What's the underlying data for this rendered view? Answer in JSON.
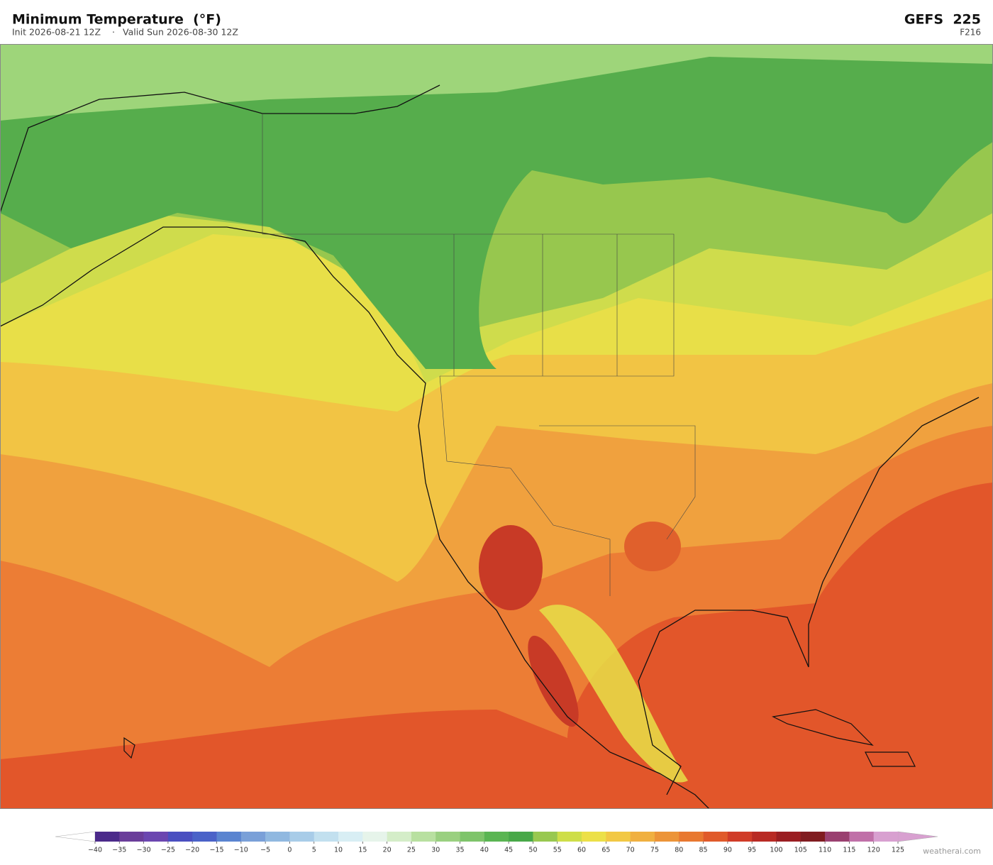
{
  "header": {
    "title": "Minimum Temperature  (°F)",
    "init": "Init 2026-08-21 12Z",
    "separator": "·",
    "valid": "Valid Sun 2026-08-30 12Z",
    "model": "GEFS  225",
    "forecast_hour": "F216"
  },
  "colorbar": {
    "ticks": [
      {
        "value": -40,
        "label": "−40"
      },
      {
        "value": -35,
        "label": "−35"
      },
      {
        "value": -30,
        "label": "−30"
      },
      {
        "value": -25,
        "label": "−25"
      },
      {
        "value": -20,
        "label": "−20"
      },
      {
        "value": -15,
        "label": "−15"
      },
      {
        "value": -10,
        "label": "−10"
      },
      {
        "value": -5,
        "label": "−5"
      },
      0,
      5,
      10,
      15,
      20,
      25,
      30,
      35,
      40,
      45,
      50,
      55,
      60,
      65,
      70,
      75,
      80,
      85,
      90,
      95,
      100,
      105,
      110,
      115,
      120,
      125
    ],
    "colors": [
      "#4b2a8a",
      "#6a3d9a",
      "#6b46b0",
      "#4a4fc0",
      "#4a62c8",
      "#5a84d0",
      "#7aa0d8",
      "#90b8e0",
      "#a8cce8",
      "#c2e0ef",
      "#d8eef4",
      "#e6f4ea",
      "#d4edc8",
      "#b8e0a0",
      "#9ad080",
      "#7ec46a",
      "#5ab552",
      "#48a848",
      "#98c850",
      "#cede48",
      "#ece048",
      "#f2c844",
      "#f0b040",
      "#ec9438",
      "#e87830",
      "#e05a2a",
      "#d03c28",
      "#b82a24",
      "#9a1e22",
      "#801c20",
      "#9a4070",
      "#c070a8",
      "#d8a0d0"
    ],
    "under_color": "#ffffff",
    "over_color": "#d8a0d0"
  },
  "watermark": "weatherai.com"
}
